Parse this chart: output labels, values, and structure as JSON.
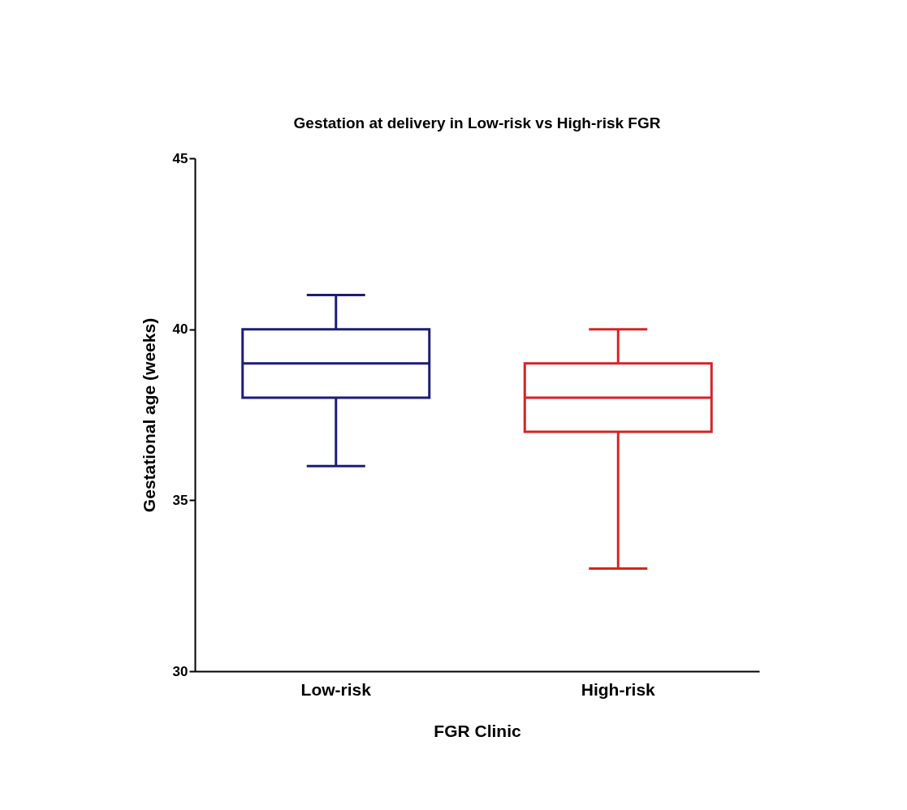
{
  "chart_data": {
    "type": "box",
    "title": "Gestation at delivery in Low-risk vs High-risk FGR",
    "xlabel": "FGR Clinic",
    "ylabel": "Gestational age (weeks)",
    "categories": [
      "Low-risk",
      "High-risk"
    ],
    "colors": [
      "#1c1c7c",
      "#d42424"
    ],
    "boxes": [
      {
        "low": 36,
        "q1": 38,
        "median": 39,
        "q3": 40,
        "high": 41
      },
      {
        "low": 33,
        "q1": 37,
        "median": 38,
        "q3": 39,
        "high": 40
      }
    ],
    "ylim": [
      30,
      45
    ],
    "yticks": [
      30,
      35,
      40,
      45
    ]
  }
}
